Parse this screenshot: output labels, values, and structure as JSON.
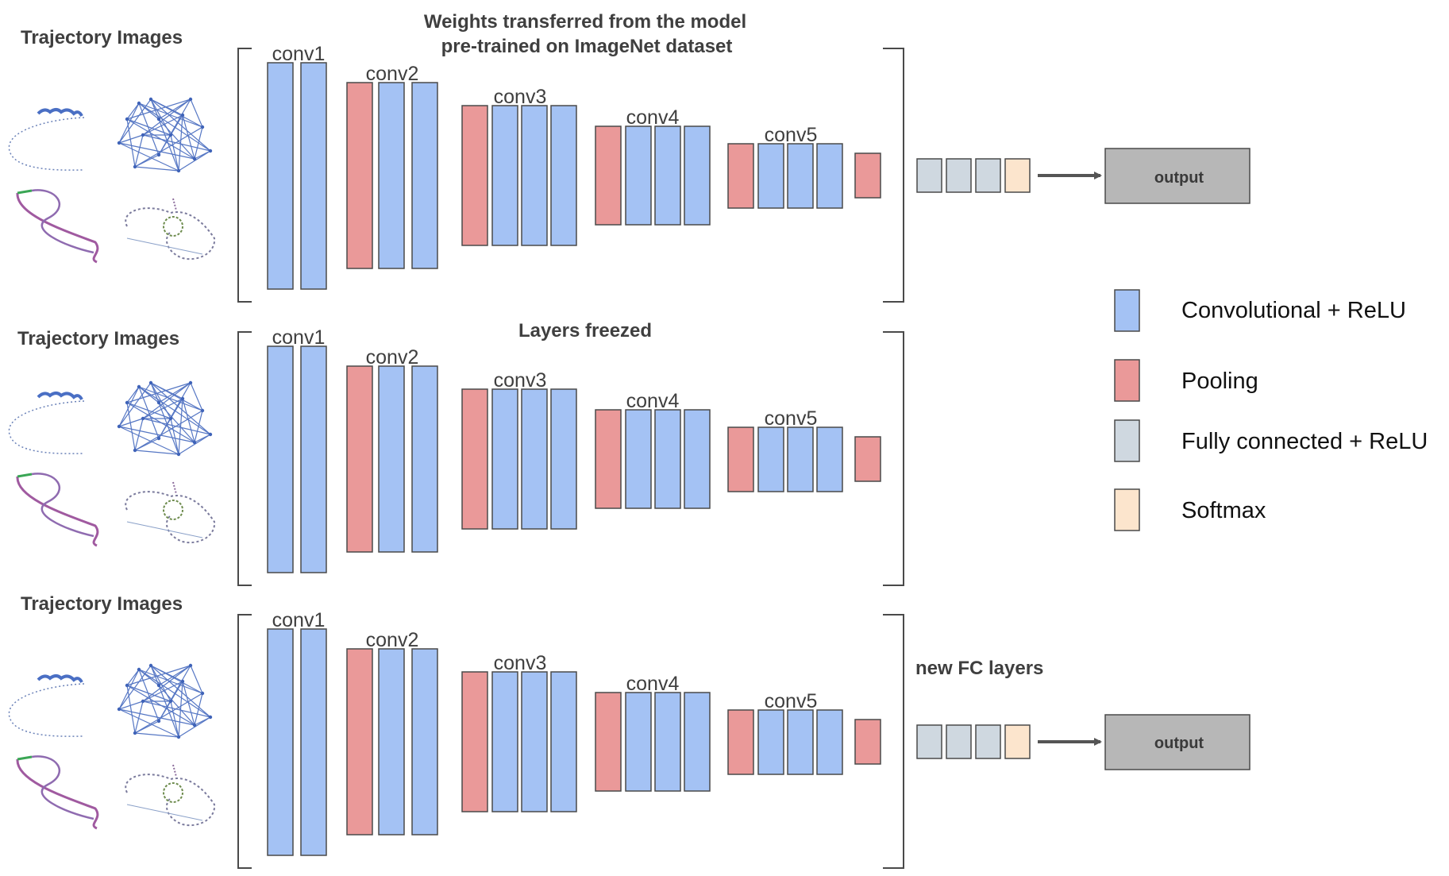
{
  "header": {
    "title_line1": "Weights transferred from the model",
    "title_line2": "pre-trained on ImageNet dataset",
    "freeze_label": "Layers freezed",
    "new_fc_label": "new FC layers"
  },
  "rows": [
    {
      "input_label": "Trajectory Images",
      "has_head": true,
      "output_label": "output"
    },
    {
      "input_label": "Trajectory Images",
      "has_head": false,
      "output_label": ""
    },
    {
      "input_label": "Trajectory Images",
      "has_head": true,
      "output_label": "output"
    }
  ],
  "blocks": [
    {
      "label": "conv1",
      "layers": [
        "conv",
        "conv"
      ]
    },
    {
      "label": "conv2",
      "layers": [
        "pool",
        "conv",
        "conv"
      ]
    },
    {
      "label": "conv3",
      "layers": [
        "pool",
        "conv",
        "conv",
        "conv"
      ]
    },
    {
      "label": "conv4",
      "layers": [
        "pool",
        "conv",
        "conv",
        "conv"
      ]
    },
    {
      "label": "conv5",
      "layers": [
        "pool",
        "conv",
        "conv",
        "conv"
      ]
    },
    {
      "label": "",
      "layers": [
        "pool"
      ]
    }
  ],
  "head_layers": [
    "fc",
    "fc",
    "fc",
    "softmax"
  ],
  "legend": [
    {
      "type": "conv",
      "label": "Convolutional + ReLU"
    },
    {
      "type": "pool",
      "label": "Pooling"
    },
    {
      "type": "fc",
      "label": "Fully connected + ReLU"
    },
    {
      "type": "softmax",
      "label": "Softmax"
    }
  ],
  "colors": {
    "conv": "#a4c2f4",
    "pool": "#ea9999",
    "fc": "#cfd8e0",
    "softmax": "#fce5cd",
    "output": "#b7b7b7",
    "stroke": "#4a4a4a",
    "arrow": "#555555"
  },
  "icons": {
    "thumbnails": [
      "trajectory-line-icon",
      "trajectory-network-icon",
      "trajectory-colored-curve-icon",
      "trajectory-dotted-loop-icon"
    ]
  }
}
